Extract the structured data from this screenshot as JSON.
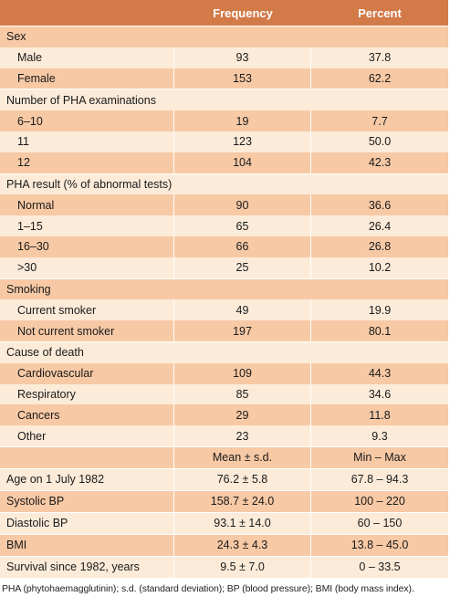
{
  "header": {
    "c1": "",
    "frequency": "Frequency",
    "percent": "Percent"
  },
  "sections": [
    {
      "title": "Sex",
      "rows": [
        {
          "label": "Male",
          "freq": "93",
          "pct": "37.8"
        },
        {
          "label": "Female",
          "freq": "153",
          "pct": "62.2"
        }
      ]
    },
    {
      "title": "Number of PHA examinations",
      "rows": [
        {
          "label": "6–10",
          "freq": "19",
          "pct": "7.7"
        },
        {
          "label": "11",
          "freq": "123",
          "pct": "50.0"
        },
        {
          "label": "12",
          "freq": "104",
          "pct": "42.3"
        }
      ]
    },
    {
      "title": "PHA result (% of abnormal tests)",
      "rows": [
        {
          "label": "Normal",
          "freq": "90",
          "pct": "36.6"
        },
        {
          "label": "1–15",
          "freq": "65",
          "pct": "26.4"
        },
        {
          "label": "16–30",
          "freq": "66",
          "pct": "26.8"
        },
        {
          "label": ">30",
          "freq": "25",
          "pct": "10.2"
        }
      ]
    },
    {
      "title": "Smoking",
      "rows": [
        {
          "label": "Current smoker",
          "freq": "49",
          "pct": "19.9"
        },
        {
          "label": "Not current smoker",
          "freq": "197",
          "pct": "80.1"
        }
      ]
    },
    {
      "title": "Cause of death",
      "rows": [
        {
          "label": "Cardiovascular",
          "freq": "109",
          "pct": "44.3"
        },
        {
          "label": "Respiratory",
          "freq": "85",
          "pct": "34.6"
        },
        {
          "label": "Cancers",
          "freq": "29",
          "pct": "11.8"
        },
        {
          "label": "Other",
          "freq": "23",
          "pct": "9.3"
        }
      ]
    }
  ],
  "summary_header": {
    "c1": "",
    "c2": "Mean ± s.d.",
    "c3": "Min – Max"
  },
  "summary_rows": [
    {
      "label": "Age on 1 July 1982",
      "mean": "76.2 ± 5.8",
      "range": "67.8 – 94.3"
    },
    {
      "label": "Systolic BP",
      "mean": "158.7 ± 24.0",
      "range": "100 – 220"
    },
    {
      "label": "Diastolic BP",
      "mean": "93.1 ± 14.0",
      "range": "60 – 150"
    },
    {
      "label": "BMI",
      "mean": "24.3 ± 4.3",
      "range": "13.8 – 45.0"
    },
    {
      "label": "Survival since 1982, years",
      "mean": "9.5 ± 7.0",
      "range": "0 – 33.5"
    }
  ],
  "footnote": "PHA (phytohaemagglutinin); s.d. (standard deviation); BP (blood pressure); BMI (body mass index).",
  "colors": {
    "header": "#d27a48",
    "dark_row": "#f7c9a5",
    "light_row": "#fcebd9"
  }
}
